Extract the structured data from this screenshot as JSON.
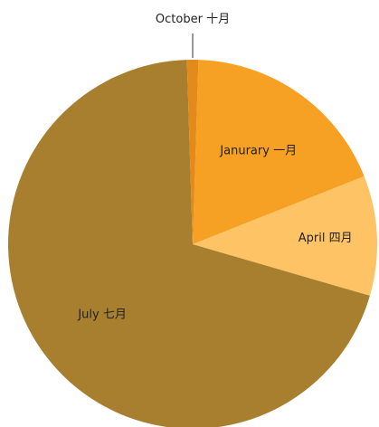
{
  "chart_data": {
    "type": "pie",
    "title": "",
    "slices": [
      {
        "label": "Janurary 一月",
        "value": 18.5,
        "color": "#f6a123"
      },
      {
        "label": "April 四月",
        "value": 10.5,
        "color": "#fec365"
      },
      {
        "label": "July 七月",
        "value": 70.0,
        "color": "#a77f2e"
      },
      {
        "label": "October 十月",
        "value": 1.0,
        "color": "#e38a1b"
      }
    ],
    "legend": "none"
  }
}
